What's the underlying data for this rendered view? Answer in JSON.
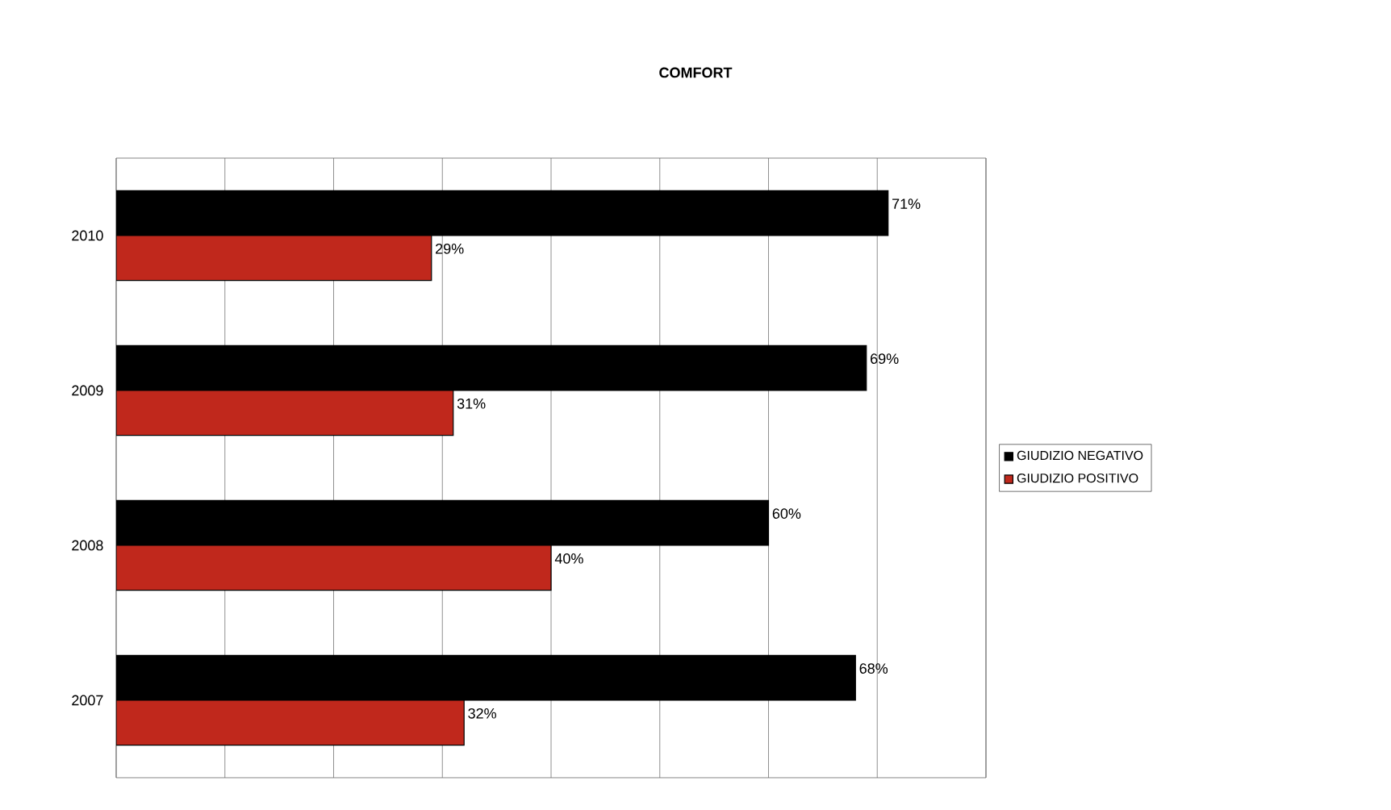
{
  "chart_data": {
    "type": "bar",
    "orientation": "horizontal",
    "title": "COMFORT",
    "categories": [
      "2010",
      "2009",
      "2008",
      "2007"
    ],
    "series": [
      {
        "name": "GIUDIZIO NEGATIVO",
        "color": "#000000",
        "values": [
          71,
          69,
          60,
          68
        ],
        "value_labels": [
          "71%",
          "69%",
          "60%",
          "68%"
        ]
      },
      {
        "name": "GIUDIZIO POSITIVO",
        "color": "#c0281c",
        "values": [
          29,
          31,
          40,
          32
        ],
        "value_labels": [
          "29%",
          "31%",
          "40%",
          "32%"
        ]
      }
    ],
    "xlim": [
      0,
      80
    ],
    "xticks": [
      {
        "value": 0,
        "label": null
      },
      {
        "value": 10,
        "label": null
      },
      {
        "value": 20,
        "label": null
      },
      {
        "value": 30,
        "label": null
      },
      {
        "value": 40,
        "label": null
      },
      {
        "value": 50,
        "label": null
      },
      {
        "value": 60,
        "label": null
      },
      {
        "value": 70,
        "label": null
      },
      {
        "value": 80,
        "label": null
      }
    ],
    "tick_labels": "y",
    "grid": "x",
    "legend": "right"
  }
}
